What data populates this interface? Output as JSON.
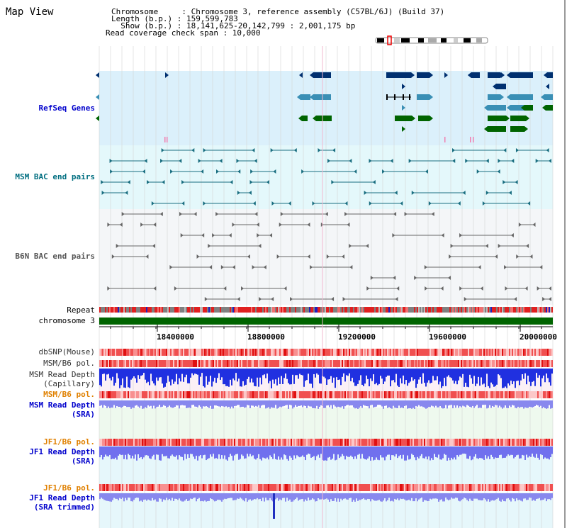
{
  "header": {
    "title": "Map View",
    "lines": [
      "Chromosome     : Chromosome 3, reference assembly (C57BL/6J) (Build 37)",
      "Length (b.p.) : 159,599,783",
      "  Show (b.p.) : 18,141,625-20,142,799 : 2,001,175 bp",
      "Read coverage check span : 10,000"
    ]
  },
  "tracks": {
    "refseq": "RefSeq Genes",
    "msm_bac": "MSM BAC end pairs",
    "b6n_bac": "B6N BAC end pairs",
    "repeat": "Repeat",
    "chromosome": "chromosome 3",
    "dbsnp": "dbSNP(Mouse)",
    "msm_b6_pol": "MSM/B6 pol.",
    "msm_read_depth_cap": "MSM Read Depth",
    "msm_read_depth_cap_sub": "(Capillary)",
    "msm_b6_pol_2": "MSM/B6 pol.",
    "msm_read_depth_sra": "MSM Read Depth",
    "msm_read_depth_sra_sub": "(SRA)",
    "jf1_b6_pol": "JF1/B6 pol.",
    "jf1_read_depth": "JF1 Read Depth",
    "jf1_read_depth_sub": "(SRA)",
    "jf1_b6_pol_2": "JF1/B6 pol.",
    "jf1_read_depth_trim": "JF1 Read Depth",
    "jf1_read_depth_trim_sub": "(SRA trimmed)"
  },
  "axis": {
    "ticks": [
      "18400000",
      "18800000",
      "19200000",
      "19600000",
      "20000000"
    ]
  },
  "colors": {
    "refseq_bg": "#dbf0fb",
    "msm_bg": "#e4f8fb",
    "b6n_bg": "#f4f6f8",
    "gene_dark": "#003070",
    "gene_mid": "#3a8fb5",
    "gene_green": "#006400",
    "msm_pair": "#1a6e80",
    "b6n_pair": "#666666",
    "chrom_bar": "#006400"
  }
}
